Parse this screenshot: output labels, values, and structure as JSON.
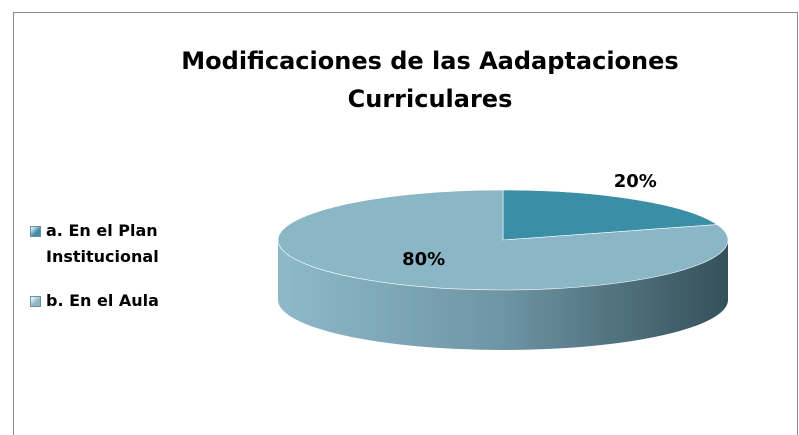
{
  "chart_data": {
    "type": "pie",
    "title": "Modificaciones de las Aadaptaciones Curriculares",
    "categories": [
      "a. En el Plan Institucional",
      "b. En el Aula"
    ],
    "values": [
      20,
      80
    ],
    "value_labels": [
      "20%",
      "80%"
    ],
    "colors": [
      "#3a8ea5",
      "#8ab6c6"
    ],
    "legend": "left"
  }
}
